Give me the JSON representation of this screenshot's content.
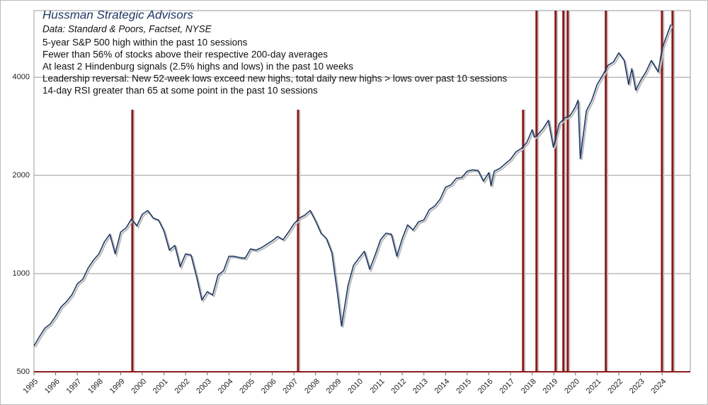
{
  "chart_data": {
    "type": "line",
    "title": "Hussman Strategic Advisors",
    "subtitle": "Data: Standard & Poors, Factset, NYSE",
    "annotations": [
      "5-year S&P 500 high within the past 10 sessions",
      "Fewer than 56% of stocks above their respective 200-day averages",
      "At least 2 Hindenburg signals (2.5% highs and lows) in the past 10 weeks",
      "Leadership reversal: New 52-week lows exceed new highs, total daily new highs > lows over past 10 sessions",
      "14-day RSI greater than 65 at some point in the past 10 sessions"
    ],
    "log_scale": true,
    "grid": true,
    "color": "#1f3864",
    "signal_color": "#8b1a1a",
    "xlim": [
      1995,
      2025.3
    ],
    "ylim": [
      500,
      6400
    ],
    "yticks": [
      500,
      1000,
      2000,
      4000
    ],
    "xticks": [
      1995,
      1996,
      1997,
      1998,
      1999,
      2000,
      2001,
      2002,
      2003,
      2004,
      2005,
      2006,
      2007,
      2008,
      2009,
      2010,
      2011,
      2012,
      2013,
      2014,
      2015,
      2016,
      2017,
      2018,
      2019,
      2020,
      2021,
      2022,
      2023,
      2024
    ],
    "x": [
      1995.0,
      1995.25,
      1995.5,
      1995.75,
      1996.0,
      1996.25,
      1996.5,
      1996.75,
      1997.0,
      1997.25,
      1997.5,
      1997.75,
      1998.0,
      1998.25,
      1998.5,
      1998.75,
      1999.0,
      1999.25,
      1999.5,
      1999.75,
      2000.0,
      2000.25,
      2000.5,
      2000.75,
      2001.0,
      2001.25,
      2001.5,
      2001.75,
      2002.0,
      2002.25,
      2002.5,
      2002.75,
      2003.0,
      2003.25,
      2003.5,
      2003.75,
      2004.0,
      2004.25,
      2004.5,
      2004.75,
      2005.0,
      2005.25,
      2005.5,
      2005.75,
      2006.0,
      2006.25,
      2006.5,
      2006.75,
      2007.0,
      2007.25,
      2007.5,
      2007.75,
      2008.0,
      2008.25,
      2008.5,
      2008.75,
      2009.0,
      2009.2,
      2009.5,
      2009.75,
      2010.0,
      2010.25,
      2010.5,
      2010.75,
      2011.0,
      2011.25,
      2011.5,
      2011.75,
      2012.0,
      2012.25,
      2012.5,
      2012.75,
      2013.0,
      2013.25,
      2013.5,
      2013.75,
      2014.0,
      2014.25,
      2014.5,
      2014.75,
      2015.0,
      2015.25,
      2015.5,
      2015.75,
      2016.0,
      2016.1,
      2016.25,
      2016.5,
      2016.75,
      2017.0,
      2017.25,
      2017.5,
      2017.75,
      2018.0,
      2018.1,
      2018.25,
      2018.5,
      2018.75,
      2018.98,
      2019.25,
      2019.5,
      2019.75,
      2020.0,
      2020.12,
      2020.22,
      2020.5,
      2020.75,
      2021.0,
      2021.25,
      2021.5,
      2021.75,
      2022.0,
      2022.25,
      2022.45,
      2022.6,
      2022.78,
      2023.0,
      2023.25,
      2023.5,
      2023.82,
      2024.0,
      2024.4
    ],
    "values": [
      600,
      640,
      680,
      700,
      740,
      790,
      820,
      860,
      930,
      960,
      1040,
      1100,
      1150,
      1250,
      1320,
      1150,
      1340,
      1380,
      1470,
      1400,
      1520,
      1560,
      1480,
      1460,
      1350,
      1180,
      1220,
      1050,
      1150,
      1140,
      980,
      830,
      880,
      860,
      990,
      1020,
      1130,
      1130,
      1120,
      1115,
      1190,
      1180,
      1200,
      1230,
      1260,
      1300,
      1270,
      1340,
      1420,
      1480,
      1510,
      1560,
      1450,
      1330,
      1280,
      1160,
      880,
      690,
      920,
      1060,
      1115,
      1170,
      1030,
      1140,
      1270,
      1330,
      1320,
      1130,
      1280,
      1410,
      1360,
      1440,
      1460,
      1570,
      1610,
      1690,
      1840,
      1870,
      1960,
      1970,
      2060,
      2080,
      2070,
      1920,
      2040,
      1860,
      2060,
      2100,
      2170,
      2240,
      2360,
      2420,
      2520,
      2760,
      2620,
      2660,
      2780,
      2950,
      2440,
      2880,
      3000,
      3050,
      3250,
      3400,
      2250,
      3150,
      3400,
      3800,
      4050,
      4350,
      4450,
      4750,
      4500,
      3800,
      4250,
      3650,
      3900,
      4150,
      4500,
      4150,
      4900,
      5800
    ],
    "signals": [
      {
        "x": 1999.54,
        "top": 3180
      },
      {
        "x": 2007.19,
        "top": 3180
      },
      {
        "x": 2017.58,
        "top": 3180
      },
      {
        "x": 2018.2,
        "top": 6400
      },
      {
        "x": 2019.08,
        "top": 6400
      },
      {
        "x": 2019.44,
        "top": 6400
      },
      {
        "x": 2019.64,
        "top": 6400
      },
      {
        "x": 2021.4,
        "top": 6400
      },
      {
        "x": 2023.99,
        "top": 6400
      },
      {
        "x": 2024.48,
        "top": 6400
      }
    ]
  }
}
